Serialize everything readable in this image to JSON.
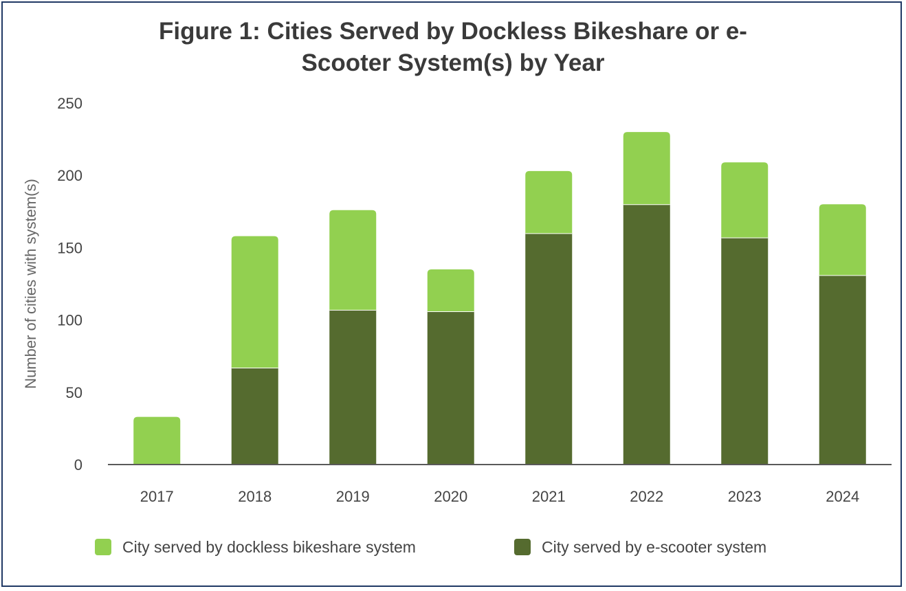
{
  "chart_data": {
    "type": "bar",
    "stacked": true,
    "title": "Figure 1: Cities Served by Dockless Bikeshare or e-Scooter System(s) by Year",
    "title_lines": [
      "Figure 1: Cities Served by Dockless Bikeshare or e-",
      "Scooter System(s) by Year"
    ],
    "xlabel": "",
    "ylabel": "Number of cities with system(s)",
    "ylim": [
      0,
      250
    ],
    "yticks": [
      0,
      50,
      100,
      150,
      200,
      250
    ],
    "categories": [
      "2017",
      "2018",
      "2019",
      "2020",
      "2021",
      "2022",
      "2023",
      "2024"
    ],
    "series": [
      {
        "name": "City served by e-scooter system",
        "color": "#556b2f",
        "values": [
          0,
          67,
          107,
          106,
          160,
          180,
          157,
          131
        ]
      },
      {
        "name": "City served by dockless bikeshare system",
        "color": "#92d050",
        "values": [
          33,
          91,
          69,
          29,
          43,
          50,
          52,
          49
        ]
      }
    ],
    "legend": {
      "placement": "bottom",
      "order": [
        "City served by dockless bikeshare system",
        "City served by e-scooter system"
      ]
    },
    "grid": false,
    "frame_color": "#1f3864"
  }
}
